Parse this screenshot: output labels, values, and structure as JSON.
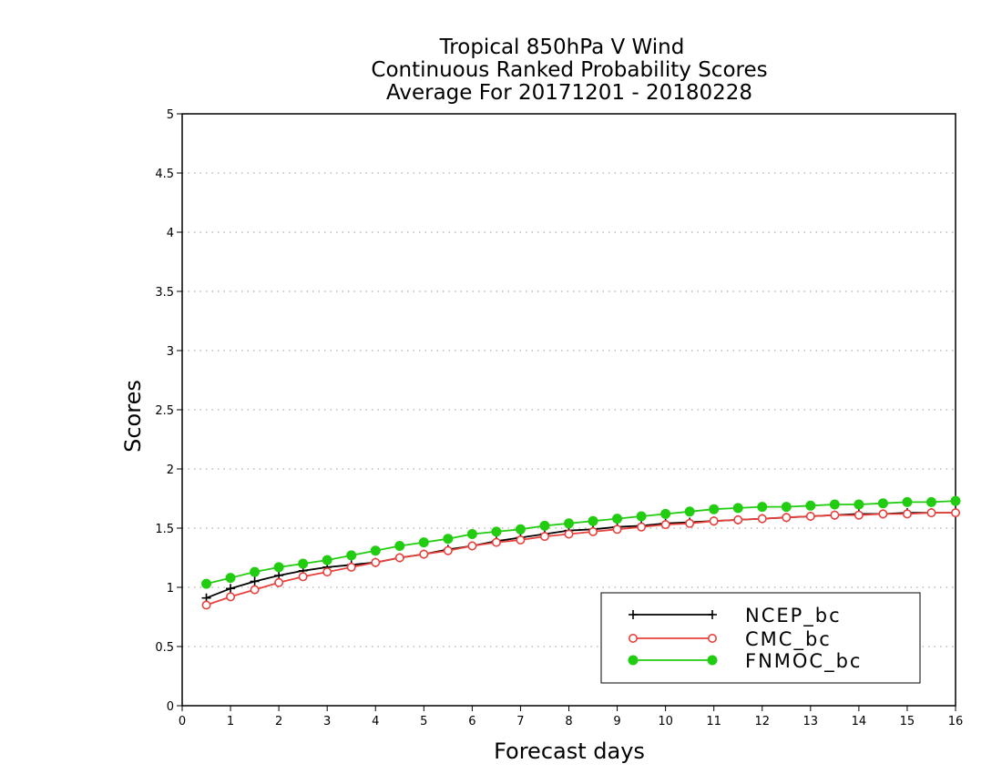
{
  "chart_data": {
    "type": "line",
    "title_lines": [
      "Tropical 850hPa V Wind",
      "Continuous Ranked Probability Scores",
      "Average For 20171201 - 20180228"
    ],
    "xlabel": "Forecast days",
    "ylabel": "Scores",
    "xlim": [
      0,
      16
    ],
    "ylim": [
      0,
      5
    ],
    "x_ticks": [
      0,
      1,
      2,
      3,
      4,
      5,
      6,
      7,
      8,
      9,
      10,
      11,
      12,
      13,
      14,
      15,
      16
    ],
    "y_ticks": [
      0,
      0.5,
      1,
      1.5,
      2,
      2.5,
      3,
      3.5,
      4,
      4.5,
      5
    ],
    "y_tick_labels": [
      "0",
      "0.5",
      "1",
      "1.5",
      "2",
      "2.5",
      "3",
      "3.5",
      "4",
      "4.5",
      "5"
    ],
    "grid": "horizontal-dotted",
    "legend_position": "bottom-right",
    "x": [
      0.5,
      1,
      1.5,
      2,
      2.5,
      3,
      3.5,
      4,
      4.5,
      5,
      5.5,
      6,
      6.5,
      7,
      7.5,
      8,
      8.5,
      9,
      9.5,
      10,
      10.5,
      11,
      11.5,
      12,
      12.5,
      13,
      13.5,
      14,
      14.5,
      15,
      15.5,
      16
    ],
    "series": [
      {
        "name": "NCEP_bc",
        "color": "#000000",
        "marker": "plus",
        "values": [
          0.91,
          0.99,
          1.05,
          1.1,
          1.14,
          1.17,
          1.19,
          1.21,
          1.25,
          1.28,
          1.32,
          1.35,
          1.39,
          1.42,
          1.45,
          1.48,
          1.49,
          1.51,
          1.52,
          1.54,
          1.55,
          1.56,
          1.57,
          1.58,
          1.59,
          1.6,
          1.61,
          1.62,
          1.62,
          1.63,
          1.63,
          1.63
        ]
      },
      {
        "name": "CMC_bc",
        "color": "#e8413c",
        "marker": "open-circle",
        "values": [
          0.85,
          0.92,
          0.98,
          1.04,
          1.09,
          1.13,
          1.17,
          1.21,
          1.25,
          1.28,
          1.31,
          1.35,
          1.38,
          1.4,
          1.43,
          1.45,
          1.47,
          1.49,
          1.51,
          1.53,
          1.54,
          1.56,
          1.57,
          1.58,
          1.59,
          1.6,
          1.61,
          1.61,
          1.62,
          1.62,
          1.63,
          1.63
        ]
      },
      {
        "name": "FNMOC_bc",
        "color": "#22cc11",
        "marker": "filled-circle",
        "values": [
          1.03,
          1.08,
          1.13,
          1.17,
          1.2,
          1.23,
          1.27,
          1.31,
          1.35,
          1.38,
          1.41,
          1.45,
          1.47,
          1.49,
          1.52,
          1.54,
          1.56,
          1.58,
          1.6,
          1.62,
          1.64,
          1.66,
          1.67,
          1.68,
          1.68,
          1.69,
          1.7,
          1.7,
          1.71,
          1.72,
          1.72,
          1.73
        ]
      }
    ]
  }
}
